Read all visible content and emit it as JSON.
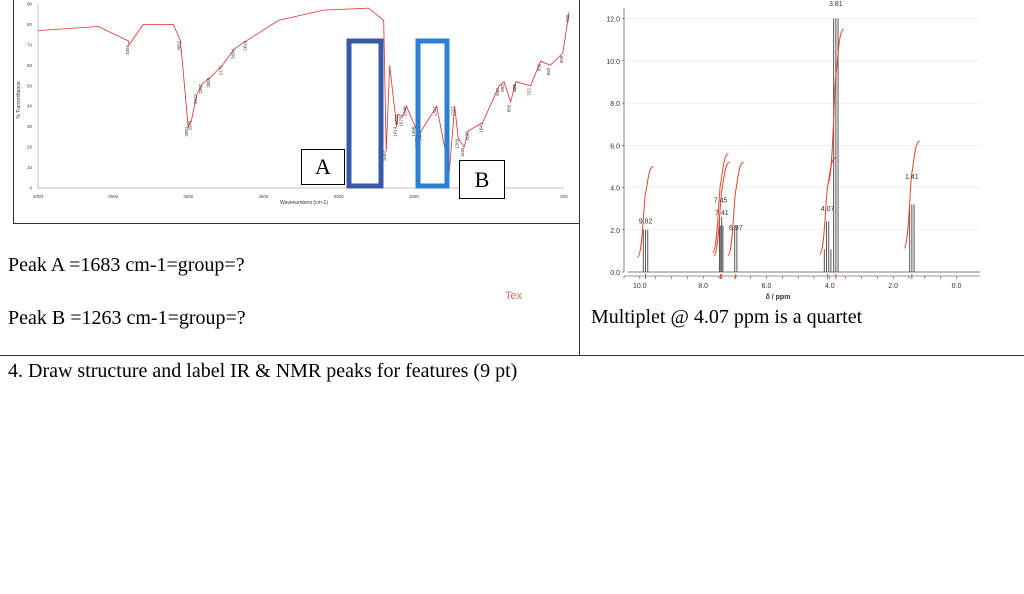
{
  "ir_panel": {
    "x_axis_title": "Wavenumbers (cm-1)",
    "y_axis_title": "% Transmittance",
    "x_ticks": [
      "4000",
      "3500",
      "3000",
      "2500",
      "2000",
      "1500",
      "1000",
      "500"
    ],
    "y_ticks": [
      "90",
      "80",
      "70",
      "60",
      "50",
      "40",
      "30",
      "20",
      "10",
      "0"
    ],
    "peak_labels": [
      "3052",
      "3394",
      "3001",
      "2979",
      "2942",
      "2907",
      "2855",
      "2773",
      "2694",
      "2614",
      "1683",
      "1614",
      "1604",
      "1575",
      "1548",
      "1471",
      "1490",
      "1449",
      "1263",
      "1347",
      "1203",
      "1165",
      "1136",
      "1227",
      "1041",
      "932",
      "899",
      "855",
      "821",
      "820",
      "722",
      "656",
      "592",
      "508",
      "466"
    ],
    "box_a_label": "A",
    "box_b_label": "B",
    "box_colors": {
      "a": "#3a57a8",
      "b": "#2b7fd4"
    }
  },
  "nmr_panel": {
    "x_axis_title": "δ / ppm",
    "x_ticks": [
      "10.0",
      "8.0",
      "6.0",
      "4.0",
      "2.0",
      "0.0"
    ],
    "y_ticks": [
      "0.0",
      "2.0",
      "4.0",
      "6.0",
      "8.0",
      "10.0",
      "12.0"
    ],
    "peak_labels": [
      "3.81",
      "1.41",
      "4.07",
      "7.45",
      "7.41",
      "6.97",
      "9.82"
    ],
    "integral_color": "#e8462c"
  },
  "questions": {
    "peak_a": "Peak A =1683 cm-1=group=?",
    "peak_b": "Peak B =1263 cm-1=group=?",
    "multiplet": "Multiplet @ 4.07 ppm is a quartet",
    "stray_text": "Tex"
  },
  "task": {
    "prompt": "4. Draw structure and label IR & NMR peaks for features  (9 pt)"
  },
  "chart_data": [
    {
      "type": "line",
      "xlabel": "Wavenumbers (cm-1)",
      "ylabel": "% Transmittance",
      "xlim": [
        4000,
        500
      ],
      "ylim": [
        0,
        90
      ],
      "x": [
        4000,
        3600,
        3400,
        3394,
        3300,
        3100,
        3052,
        3001,
        2979,
        2942,
        2907,
        2855,
        2773,
        2694,
        2614,
        2400,
        2100,
        1800,
        1700,
        1683,
        1660,
        1614,
        1604,
        1575,
        1548,
        1490,
        1471,
        1449,
        1347,
        1263,
        1227,
        1203,
        1165,
        1136,
        1041,
        932,
        899,
        855,
        821,
        820,
        722,
        656,
        592,
        508,
        466
      ],
      "y": [
        77,
        79,
        72,
        70,
        80,
        80,
        72,
        30,
        33,
        46,
        51,
        54,
        60,
        68,
        72,
        82,
        87,
        88,
        82,
        18,
        60,
        30,
        36,
        35,
        40,
        30,
        25,
        28,
        40,
        8,
        40,
        24,
        20,
        28,
        32,
        50,
        52,
        42,
        52,
        52,
        50,
        62,
        60,
        66,
        86
      ]
    },
    {
      "type": "line",
      "xlabel": "δ / ppm",
      "ylabel": "",
      "xlim": [
        10.5,
        -0.3
      ],
      "ylim": [
        0,
        12.5
      ],
      "x": [
        9.82,
        7.45,
        7.41,
        6.97,
        4.07,
        3.81,
        1.41
      ],
      "y": [
        2.0,
        2.6,
        2.2,
        2.2,
        2.4,
        12.0,
        3.2
      ]
    }
  ]
}
